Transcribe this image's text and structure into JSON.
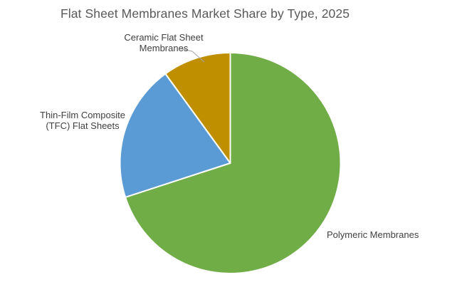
{
  "title": "Flat Sheet Membranes Market Share by Type, 2025",
  "chart_data": {
    "type": "pie",
    "title": "Flat Sheet Membranes Market Share by Type, 2025",
    "categories": [
      "Polymeric Membranes",
      "Thin-Film Composite (TFC) Flat Sheets",
      "Ceramic Flat Sheet Membranes"
    ],
    "values": [
      70,
      20,
      10
    ],
    "unit": "percent of market share (estimated from slice angles)",
    "colors": [
      "#70AD47",
      "#5B9BD5",
      "#BF8F00"
    ],
    "start_angle_deg": 0,
    "direction": "clockwise",
    "legend_position": "none",
    "label_style": "outside-category-labels",
    "slice_border_color": "#FFFFFF",
    "slice_border_width": 2
  },
  "labels": {
    "polymeric": "Polymeric Membranes",
    "tfc_line1": "Thin-Film Composite",
    "tfc_line2": "(TFC) Flat Sheets",
    "ceramic_line1": "Ceramic Flat Sheet",
    "ceramic_line2": "Membranes"
  },
  "style": {
    "background": "#FFFFFF",
    "title_color": "#595959",
    "label_color": "#404040",
    "leader_line_color": "#A6A6A6"
  }
}
